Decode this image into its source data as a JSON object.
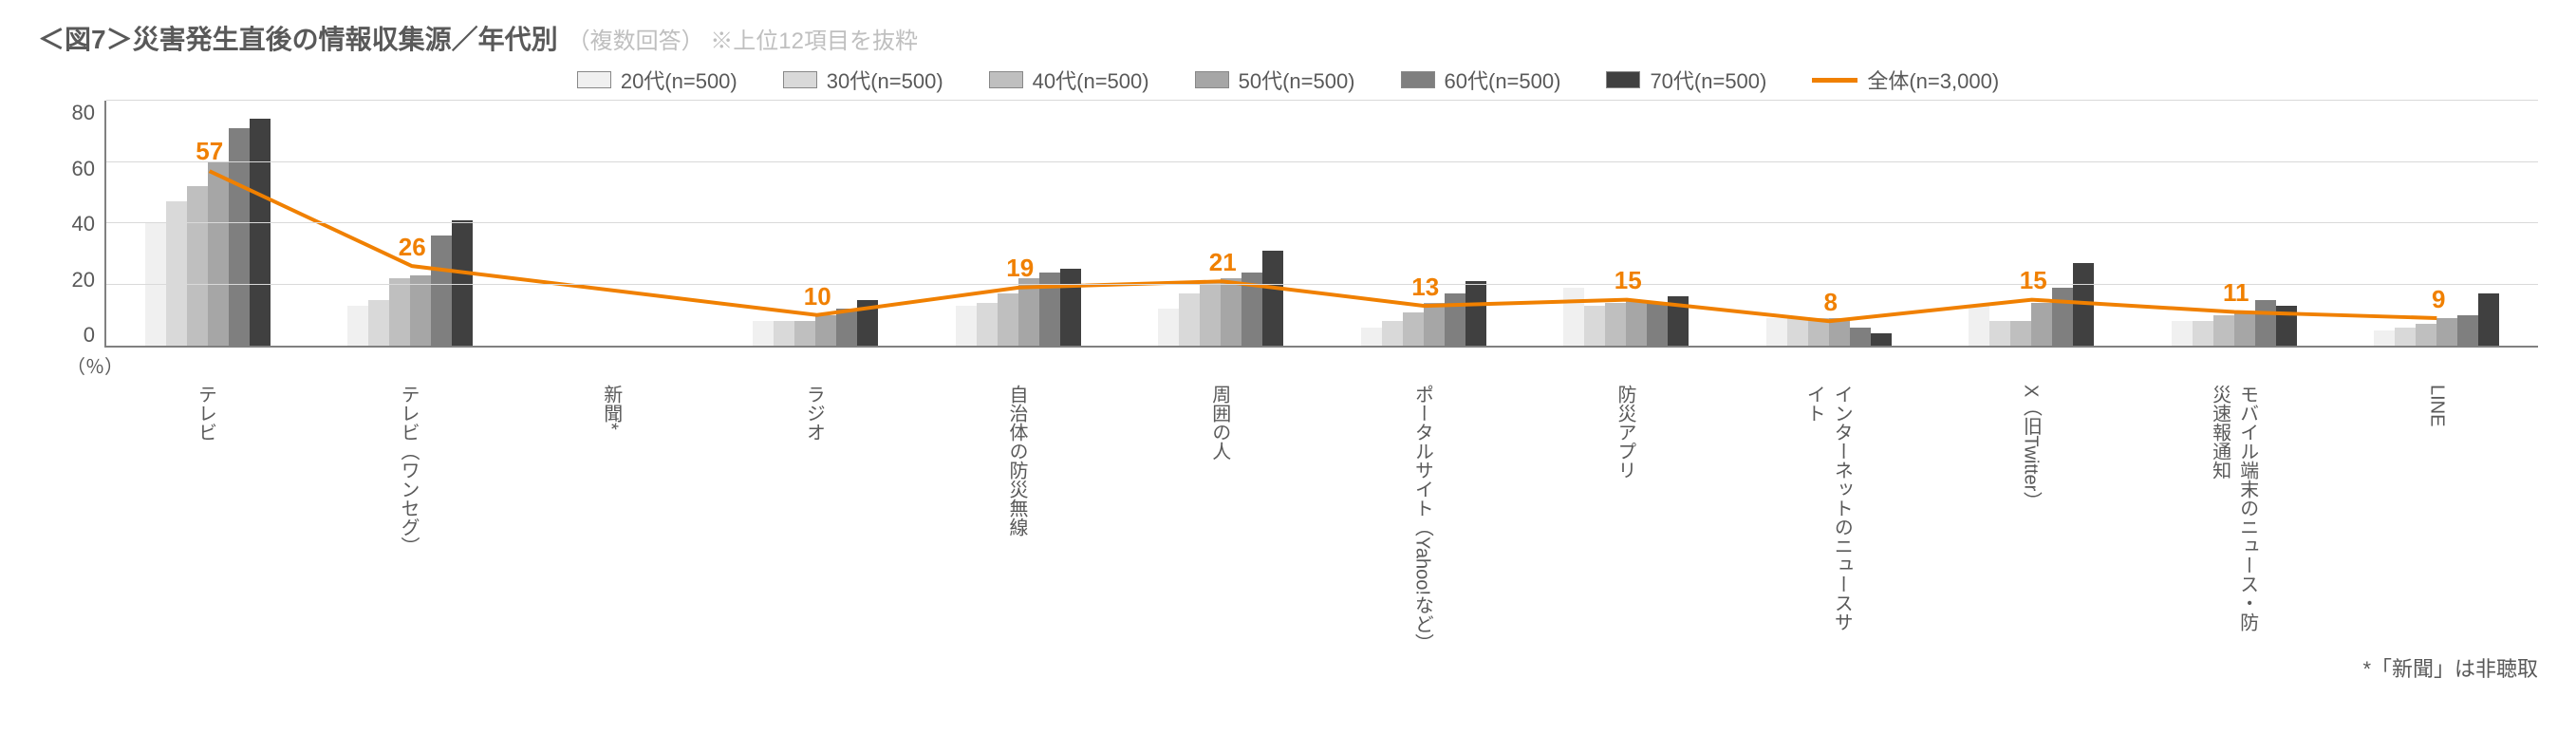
{
  "title": {
    "main": "＜図7＞災害発生直後の情報収集源／年代別",
    "sub": "（複数回答） ※上位12項目を抜粋"
  },
  "legend": {
    "series": [
      {
        "label": "20代(n=500)",
        "color": "#f0f0f0"
      },
      {
        "label": "30代(n=500)",
        "color": "#d9d9d9"
      },
      {
        "label": "40代(n=500)",
        "color": "#bfbfbf"
      },
      {
        "label": "50代(n=500)",
        "color": "#a6a6a6"
      },
      {
        "label": "60代(n=500)",
        "color": "#7f7f7f"
      },
      {
        "label": "70代(n=500)",
        "color": "#404040"
      }
    ],
    "line": {
      "label": "全体(n=3,000)",
      "color": "#f08000"
    }
  },
  "chart": {
    "type": "bar+line",
    "ylim": [
      0,
      80
    ],
    "ytick_step": 20,
    "yticks": [
      "80",
      "60",
      "40",
      "20",
      "0"
    ],
    "unit": "（％）",
    "background_color": "#ffffff",
    "grid_color": "#d9d9d9",
    "axis_color": "#808080",
    "bar_colors": [
      "#f0f0f0",
      "#d9d9d9",
      "#bfbfbf",
      "#a6a6a6",
      "#7f7f7f",
      "#404040"
    ],
    "line_color": "#f08000",
    "line_width": 4,
    "label_fontsize": 26,
    "label_color": "#f08000",
    "categories": [
      "テレビ",
      "テレビ（ワンセグ）",
      "新聞*",
      "ラジオ",
      "自治体の防災無線",
      "周囲の人",
      "ポータルサイト（Yahoo!など）",
      "防災アプリ",
      "インターネットのニュースサイト",
      "X（旧Twitter）",
      "モバイル端末のニュース・防災速報通知",
      "LINE"
    ],
    "bars": [
      [
        40,
        47,
        52,
        60,
        71,
        74
      ],
      [
        13,
        15,
        22,
        23,
        36,
        41
      ],
      [
        0,
        0,
        0,
        0,
        0,
        0
      ],
      [
        8,
        8,
        8,
        10,
        12,
        15
      ],
      [
        13,
        14,
        17,
        22,
        24,
        25
      ],
      [
        12,
        17,
        21,
        22,
        24,
        31
      ],
      [
        6,
        8,
        11,
        14,
        17,
        21
      ],
      [
        19,
        13,
        14,
        15,
        14,
        16
      ],
      [
        9,
        9,
        9,
        9,
        6,
        4
      ],
      [
        13,
        8,
        8,
        14,
        19,
        27
      ],
      [
        8,
        8,
        10,
        11,
        15,
        13
      ],
      [
        5,
        6,
        7,
        9,
        10,
        17
      ]
    ],
    "line_values": [
      57,
      26,
      null,
      10,
      19,
      21,
      13,
      15,
      8,
      15,
      11,
      9
    ],
    "line_labels": [
      "57",
      "26",
      "",
      "10",
      "19",
      "21",
      "13",
      "15",
      "8",
      "15",
      "11",
      "9"
    ]
  },
  "footnote": "*「新聞」は非聴取"
}
